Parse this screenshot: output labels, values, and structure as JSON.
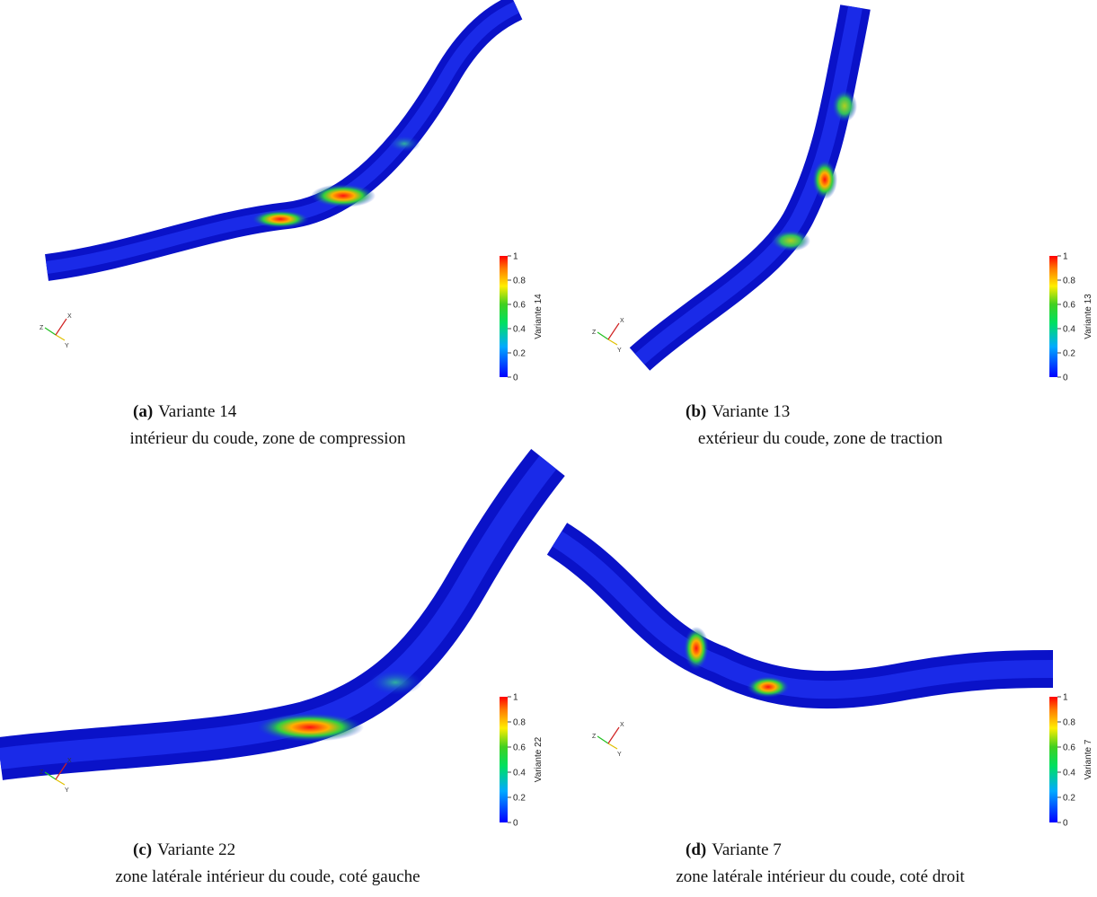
{
  "panels": [
    {
      "label": "(a)",
      "title": "Variante 14",
      "caption": "intérieur du coude, zone de compression",
      "colorbar": {
        "label": "Variante 14",
        "ticks": [
          0,
          0.2,
          0.4,
          0.6,
          0.8,
          1
        ]
      },
      "triad": [
        "Z",
        "Y",
        "X"
      ]
    },
    {
      "label": "(b)",
      "title": "Variante 13",
      "caption": "extérieur du coude, zone de traction",
      "colorbar": {
        "label": "Variante 13",
        "ticks": [
          0,
          0.2,
          0.4,
          0.6,
          0.8,
          1
        ]
      },
      "triad": [
        "Z",
        "Y",
        "X"
      ]
    },
    {
      "label": "(c)",
      "title": "Variante 22",
      "caption": "zone latérale intérieur du coude, coté gauche",
      "colorbar": {
        "label": "Variante 22",
        "ticks": [
          0,
          0.2,
          0.4,
          0.6,
          0.8,
          1
        ]
      },
      "triad": [
        "Z",
        "Y",
        "X"
      ]
    },
    {
      "label": "(d)",
      "title": "Variante 7",
      "caption": "zone latérale intérieur du coude, coté droit",
      "colorbar": {
        "label": "Variante 7",
        "ticks": [
          0,
          0.2,
          0.4,
          0.6,
          0.8,
          1
        ]
      },
      "triad": [
        "Z",
        "Y",
        "X"
      ]
    }
  ]
}
